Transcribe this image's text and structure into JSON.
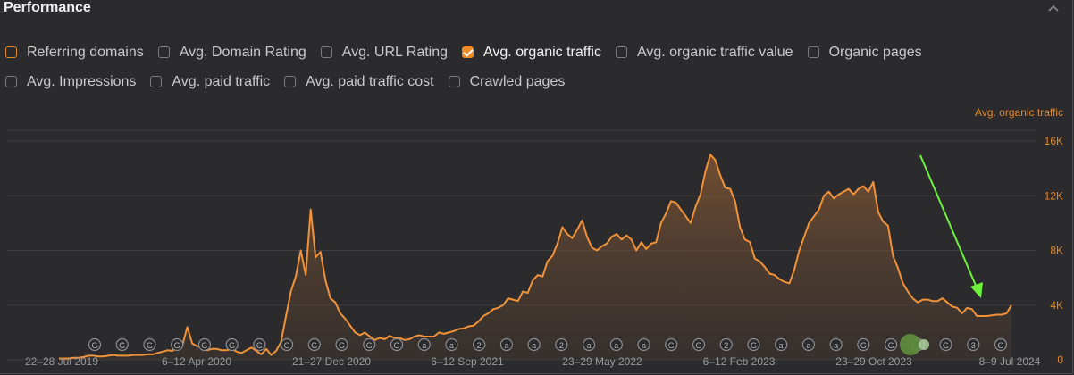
{
  "panel": {
    "title": "Performance"
  },
  "metrics": [
    {
      "label": "Referring domains",
      "checked": false,
      "accent": "#e08a2c"
    },
    {
      "label": "Avg. Domain Rating",
      "checked": false
    },
    {
      "label": "Avg. URL Rating",
      "checked": false
    },
    {
      "label": "Avg. organic traffic",
      "checked": true,
      "accent": "#f08a24"
    },
    {
      "label": "Avg. organic traffic value",
      "checked": false
    },
    {
      "label": "Organic pages",
      "checked": false
    },
    {
      "label": "Avg. Impressions",
      "checked": false
    },
    {
      "label": "Avg. paid traffic",
      "checked": false
    },
    {
      "label": "Avg. paid traffic cost",
      "checked": false
    },
    {
      "label": "Crawled pages",
      "checked": false
    }
  ],
  "chart_data": {
    "type": "area",
    "series": [
      {
        "name": "Avg. organic traffic",
        "color": "#f0923a",
        "values": [
          100,
          100,
          100,
          150,
          150,
          200,
          300,
          300,
          250,
          250,
          300,
          350,
          300,
          300,
          300,
          350,
          350,
          350,
          400,
          400,
          500,
          600,
          700,
          650,
          1000,
          1050,
          2400,
          1200,
          1000,
          900,
          700,
          800,
          800,
          700,
          700,
          800,
          600,
          500,
          700,
          900,
          650,
          400,
          800,
          350,
          650,
          1300,
          3200,
          5000,
          6100,
          8000,
          6200,
          11000,
          7500,
          7900,
          5800,
          4500,
          4200,
          3400,
          3000,
          2500,
          2000,
          1800,
          2000,
          1700,
          1450,
          1600,
          1500,
          1750,
          1600,
          1600,
          1450,
          1500,
          1700,
          1800,
          1700,
          1700,
          1700,
          2000,
          1900,
          2000,
          2100,
          2250,
          2300,
          2450,
          2500,
          2800,
          3200,
          3400,
          3700,
          3800,
          4000,
          4500,
          4400,
          4300,
          5000,
          4900,
          5800,
          6200,
          6100,
          7200,
          7600,
          8500,
          9700,
          9200,
          8900,
          9500,
          10200,
          9000,
          8200,
          8000,
          8300,
          8500,
          9000,
          9200,
          8800,
          9100,
          8800,
          8000,
          8600,
          8100,
          8500,
          8600,
          10000,
          10700,
          11600,
          11500,
          11000,
          10500,
          10000,
          11200,
          12100,
          13800,
          15000,
          14600,
          13500,
          12600,
          12500,
          11600,
          9700,
          8800,
          8600,
          7400,
          7200,
          6800,
          6300,
          6200,
          5900,
          5700,
          5600,
          6600,
          8000,
          9000,
          10000,
          10500,
          11000,
          12000,
          12300,
          11800,
          12100,
          12300,
          12500,
          12100,
          12500,
          12700,
          12300,
          13000,
          10800,
          10100,
          9800,
          7600,
          6700,
          5600,
          5000,
          4500,
          4200,
          4400,
          4400,
          4300,
          4300,
          4500,
          4200,
          3900,
          3800,
          3400,
          3800,
          3700,
          3200,
          3200,
          3200,
          3250,
          3300,
          3300,
          3400,
          4000
        ]
      }
    ],
    "y_axis_label": "Avg. organic traffic",
    "y_ticks": [
      "0",
      "4K",
      "8K",
      "12K",
      "16K"
    ],
    "ylim": [
      0,
      16000
    ],
    "x_tick_labels": [
      "22–28 Jul 2019",
      "6–12 Apr 2020",
      "21–27 Dec 2020",
      "6–12 Sep 2021",
      "23–29 May 2022",
      "6–12 Feb 2023",
      "23–29 Oct 2023",
      "8–9 Jul 2024"
    ],
    "grid": true,
    "annotation": {
      "type": "arrow",
      "color": "#6cf23a",
      "points_to": "8–9 Jul 2024 dip"
    },
    "event_markers": [
      "G",
      "G",
      "G",
      "G",
      "G",
      "G",
      "G",
      "G",
      "G",
      "G",
      "G",
      "G",
      "a",
      "a",
      "2",
      "a",
      "a",
      "2",
      "a",
      "a",
      "a",
      "G",
      "G",
      "2",
      "G",
      "a",
      "a",
      "a",
      "G",
      "G",
      "2",
      "G",
      "3",
      "G"
    ]
  }
}
